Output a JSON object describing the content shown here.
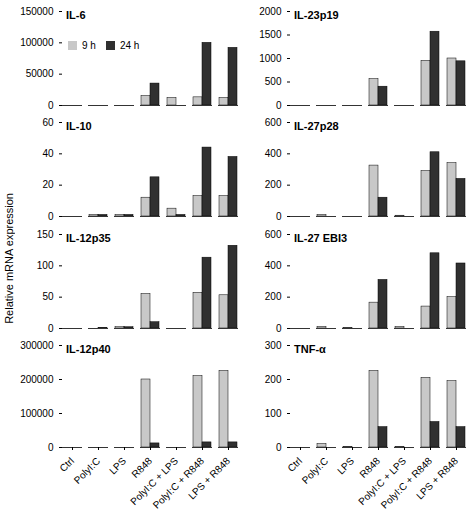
{
  "chart_data": [
    {
      "type": "bar",
      "title": "IL-6",
      "categories": [
        "Ctrl",
        "PolyI:C",
        "LPS",
        "R848",
        "PolyI:C + LPS",
        "PolyI:C + R848",
        "LPS + R848"
      ],
      "series": [
        {
          "name": "9 h",
          "color": "#c8c8c8",
          "values": [
            0,
            0,
            0,
            15000,
            12000,
            13000,
            12000
          ]
        },
        {
          "name": "24 h",
          "color": "#303030",
          "values": [
            0,
            0,
            0,
            35000,
            0,
            100000,
            92000
          ]
        }
      ],
      "ylim": [
        0,
        150000
      ],
      "yticks": [
        0,
        50000,
        100000,
        150000
      ],
      "legend": "upper left",
      "tick_labels": "y"
    },
    {
      "type": "bar",
      "title": "IL-23p19",
      "categories": [
        "Ctrl",
        "PolyI:C",
        "LPS",
        "R848",
        "PolyI:C + LPS",
        "PolyI:C + R848",
        "LPS + R848"
      ],
      "series": [
        {
          "name": "9 h",
          "color": "#c8c8c8",
          "values": [
            0,
            0,
            0,
            560,
            0,
            950,
            1000
          ]
        },
        {
          "name": "24 h",
          "color": "#303030",
          "values": [
            0,
            0,
            0,
            400,
            0,
            1570,
            940
          ]
        }
      ],
      "ylim": [
        0,
        2000
      ],
      "yticks": [
        0,
        500,
        1000,
        1500,
        2000
      ],
      "tick_labels": "y"
    },
    {
      "type": "bar",
      "title": "IL-10",
      "categories": [
        "Ctrl",
        "PolyI:C",
        "LPS",
        "R848",
        "PolyI:C + LPS",
        "PolyI:C + R848",
        "LPS + R848"
      ],
      "series": [
        {
          "name": "9 h",
          "color": "#c8c8c8",
          "values": [
            0,
            1,
            1,
            12,
            5,
            13,
            13
          ]
        },
        {
          "name": "24 h",
          "color": "#303030",
          "values": [
            0,
            1,
            1,
            25,
            1,
            44,
            38
          ]
        }
      ],
      "ylim": [
        0,
        60
      ],
      "yticks": [
        0,
        20,
        40,
        60
      ],
      "tick_labels": "y"
    },
    {
      "type": "bar",
      "title": "IL-27p28",
      "categories": [
        "Ctrl",
        "PolyI:C",
        "LPS",
        "R848",
        "PolyI:C + LPS",
        "PolyI:C + R848",
        "LPS + R848"
      ],
      "series": [
        {
          "name": "9 h",
          "color": "#c8c8c8",
          "values": [
            0,
            10,
            0,
            325,
            5,
            290,
            340
          ]
        },
        {
          "name": "24 h",
          "color": "#303030",
          "values": [
            0,
            0,
            0,
            120,
            0,
            410,
            240
          ]
        }
      ],
      "ylim": [
        0,
        600
      ],
      "yticks": [
        0,
        200,
        400,
        600
      ],
      "tick_labels": "y"
    },
    {
      "type": "bar",
      "title": "IL-12p35",
      "categories": [
        "Ctrl",
        "PolyI:C",
        "LPS",
        "R848",
        "PolyI:C + LPS",
        "PolyI:C + R848",
        "LPS + R848"
      ],
      "series": [
        {
          "name": "9 h",
          "color": "#c8c8c8",
          "values": [
            0,
            0,
            2,
            55,
            0,
            57,
            53
          ]
        },
        {
          "name": "24 h",
          "color": "#303030",
          "values": [
            0,
            1,
            2,
            10,
            0,
            113,
            132
          ]
        }
      ],
      "ylim": [
        0,
        150
      ],
      "yticks": [
        0,
        50,
        100,
        150
      ],
      "tick_labels": "y"
    },
    {
      "type": "bar",
      "title": "IL-27 EBI3",
      "categories": [
        "Ctrl",
        "PolyI:C",
        "LPS",
        "R848",
        "PolyI:C + LPS",
        "PolyI:C + R848",
        "LPS + R848"
      ],
      "series": [
        {
          "name": "9 h",
          "color": "#c8c8c8",
          "values": [
            0,
            10,
            2,
            165,
            10,
            140,
            200
          ]
        },
        {
          "name": "24 h",
          "color": "#303030",
          "values": [
            0,
            0,
            0,
            310,
            0,
            480,
            415
          ]
        }
      ],
      "ylim": [
        0,
        600
      ],
      "yticks": [
        0,
        200,
        400,
        600
      ],
      "tick_labels": "y"
    },
    {
      "type": "bar",
      "title": "IL-12p40",
      "categories": [
        "Ctrl",
        "PolyI:C",
        "LPS",
        "R848",
        "PolyI:C + LPS",
        "PolyI:C + R848",
        "LPS + R848"
      ],
      "series": [
        {
          "name": "9 h",
          "color": "#c8c8c8",
          "values": [
            0,
            0,
            0,
            200000,
            0,
            210000,
            225000
          ]
        },
        {
          "name": "24 h",
          "color": "#303030",
          "values": [
            0,
            0,
            0,
            12000,
            0,
            15000,
            15000
          ]
        }
      ],
      "ylim": [
        0,
        300000
      ],
      "yticks": [
        0,
        100000,
        200000,
        300000
      ]
    },
    {
      "type": "bar",
      "title": "TNF-α",
      "categories": [
        "Ctrl",
        "PolyI:C",
        "LPS",
        "R848",
        "PolyI:C + LPS",
        "PolyI:C + R848",
        "LPS + R848"
      ],
      "series": [
        {
          "name": "9 h",
          "color": "#c8c8c8",
          "values": [
            0,
            10,
            2,
            225,
            2,
            205,
            195
          ]
        },
        {
          "name": "24 h",
          "color": "#303030",
          "values": [
            0,
            0,
            0,
            60,
            0,
            75,
            60
          ]
        }
      ],
      "ylim": [
        0,
        300
      ],
      "yticks": [
        0,
        100,
        200,
        300
      ]
    }
  ],
  "ylabel": "Relative mRNA expression"
}
